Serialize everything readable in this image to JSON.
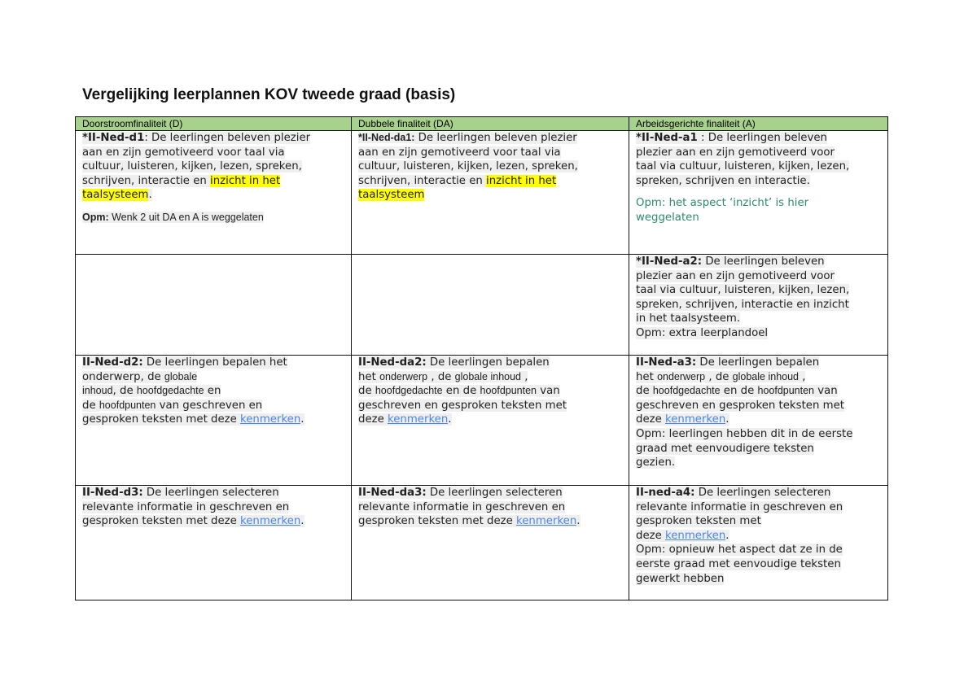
{
  "title": "Vergelijking leerplannen KOV tweede graad (basis)",
  "headers": [
    "Doorstroomfinaliteit (D)",
    "Dubbele finaliteit (DA)",
    "Arbeidsgerichte finaliteit (A)"
  ],
  "rows": [
    [
      [
        [
          {
            "t": "*II-Ned-d1",
            "s": "b"
          },
          {
            "t": ": De leerlingen beleven plezier"
          }
        ],
        [
          {
            "t": "aan en zijn gemotiveerd voor taal via"
          }
        ],
        [
          {
            "t": "cultuur, luisteren, kijken, lezen, spreken,"
          }
        ],
        [
          {
            "t": "schrijven, interactie en "
          },
          {
            "t": "inzicht in het",
            "s": "hl"
          }
        ],
        [
          {
            "t": "taalsysteem",
            "s": "hl"
          },
          {
            "t": "."
          }
        ],
        "gap",
        [
          {
            "t": "Opm: ",
            "s": "b cal"
          },
          {
            "t": "Wenk 2 uit DA en A is weggelaten",
            "s": "cal"
          }
        ]
      ],
      [
        [
          {
            "t": "*II-Ned-da1:",
            "s": "b cal"
          },
          {
            "t": " De leerlingen beleven plezier"
          }
        ],
        [
          {
            "t": "aan en zijn gemotiveerd voor taal via"
          }
        ],
        [
          {
            "t": "cultuur, luisteren, kijken, lezen, spreken,"
          }
        ],
        [
          {
            "t": "schrijven, interactie en "
          },
          {
            "t": "inzicht in het",
            "s": "hl"
          }
        ],
        [
          {
            "t": "taalsysteem",
            "s": "hl"
          }
        ]
      ],
      [
        [
          {
            "t": "*II-Ned-a1",
            "s": "b"
          },
          {
            "t": " : De leerlingen beleven"
          }
        ],
        [
          {
            "t": "plezier aan en zijn gemotiveerd voor"
          }
        ],
        [
          {
            "t": "taal via cultuur, luisteren, kijken, lezen,"
          }
        ],
        [
          {
            "t": "spreken, schrijven en interactie."
          }
        ],
        "gap",
        [
          {
            "t": "Opm: het aspect ‘inzicht’ is hier",
            "s": "green"
          }
        ],
        [
          {
            "t": "weggelaten",
            "s": "green"
          }
        ]
      ]
    ],
    [
      [],
      [],
      [
        [
          {
            "t": "*II-Ned-a2:",
            "s": "b"
          },
          {
            "t": " De leerlingen beleven"
          }
        ],
        [
          {
            "t": "plezier aan en zijn gemotiveerd voor"
          }
        ],
        [
          {
            "t": "taal via cultuur, luisteren, kijken, lezen,"
          }
        ],
        [
          {
            "t": "spreken, schrijven, interactie en inzicht"
          }
        ],
        [
          {
            "t": "in het taalsysteem."
          }
        ],
        [
          {
            "t": "Opm: extra leerplandoel"
          }
        ]
      ]
    ],
    [
      [
        [
          {
            "t": "II-Ned-d2:",
            "s": "b"
          },
          {
            "t": " De leerlingen bepalen het"
          }
        ],
        [
          {
            "t": "onderwerp, de "
          },
          {
            "t": "globale",
            "s": "cal"
          }
        ],
        [
          {
            "t": "inhoud",
            "s": "cal"
          },
          {
            "t": ", de "
          },
          {
            "t": "hoofdgedachte",
            "s": "cal"
          },
          {
            "t": " en"
          }
        ],
        [
          {
            "t": "de "
          },
          {
            "t": "hoofdpunten",
            "s": "cal"
          },
          {
            "t": " van geschreven en"
          }
        ],
        [
          {
            "t": "gesproken teksten met deze "
          },
          {
            "t": "kenmerken",
            "s": "link"
          },
          {
            "t": "."
          }
        ]
      ],
      [
        [
          {
            "t": "II-Ned-da2:",
            "s": "b"
          },
          {
            "t": " De leerlingen bepalen"
          }
        ],
        [
          {
            "t": "het "
          },
          {
            "t": "onderwerp",
            "s": "cal"
          },
          {
            "t": " , de "
          },
          {
            "t": "globale inhoud",
            "s": "cal"
          },
          {
            "t": " ,"
          }
        ],
        [
          {
            "t": "de "
          },
          {
            "t": "hoofdgedachte",
            "s": "cal"
          },
          {
            "t": " en de "
          },
          {
            "t": "hoofdpunten",
            "s": "cal"
          },
          {
            "t": " van"
          }
        ],
        [
          {
            "t": "geschreven en gesproken teksten met"
          }
        ],
        [
          {
            "t": "deze "
          },
          {
            "t": "kenmerken",
            "s": "link"
          },
          {
            "t": "."
          }
        ]
      ],
      [
        [
          {
            "t": "II-Ned-a3:",
            "s": "b"
          },
          {
            "t": " De leerlingen bepalen"
          }
        ],
        [
          {
            "t": "het "
          },
          {
            "t": "onderwerp",
            "s": "cal"
          },
          {
            "t": " , de "
          },
          {
            "t": "globale inhoud",
            "s": "cal"
          },
          {
            "t": " ,"
          }
        ],
        [
          {
            "t": "de "
          },
          {
            "t": "hoofdgedachte",
            "s": "cal"
          },
          {
            "t": " en de "
          },
          {
            "t": "hoofdpunten",
            "s": "cal"
          },
          {
            "t": " van"
          }
        ],
        [
          {
            "t": "geschreven en gesproken teksten met"
          }
        ],
        [
          {
            "t": "deze "
          },
          {
            "t": "kenmerken",
            "s": "link"
          },
          {
            "t": "."
          }
        ],
        [
          {
            "t": "Opm: leerlingen hebben dit in de eerste"
          }
        ],
        [
          {
            "t": "graad met eenvoudigere teksten"
          }
        ],
        [
          {
            "t": "gezien."
          }
        ]
      ]
    ],
    [
      [
        [
          {
            "t": "II-Ned-d3:",
            "s": "b"
          },
          {
            "t": " De leerlingen selecteren"
          }
        ],
        [
          {
            "t": "relevante informatie in geschreven en"
          }
        ],
        [
          {
            "t": "gesproken teksten met deze "
          },
          {
            "t": "kenmerken",
            "s": "link"
          },
          {
            "t": "."
          }
        ]
      ],
      [
        [
          {
            "t": "II-Ned-da3:",
            "s": "b"
          },
          {
            "t": " De leerlingen selecteren"
          }
        ],
        [
          {
            "t": "relevante informatie in geschreven en"
          }
        ],
        [
          {
            "t": "gesproken teksten met deze "
          },
          {
            "t": "kenmerken",
            "s": "link"
          },
          {
            "t": "."
          }
        ]
      ],
      [
        [
          {
            "t": "II-ned-a4:",
            "s": "b"
          },
          {
            "t": " De leerlingen selecteren"
          }
        ],
        [
          {
            "t": "relevante informatie in geschreven en"
          }
        ],
        [
          {
            "t": "gesproken teksten met"
          }
        ],
        [
          {
            "t": "deze "
          },
          {
            "t": "kenmerken",
            "s": "link"
          },
          {
            "t": "."
          }
        ],
        [
          {
            "t": "Opm: opnieuw het aspect dat ze in de"
          }
        ],
        [
          {
            "t": "eerste graad met eenvoudige teksten"
          }
        ],
        [
          {
            "t": "gewerkt hebben"
          }
        ]
      ]
    ]
  ]
}
